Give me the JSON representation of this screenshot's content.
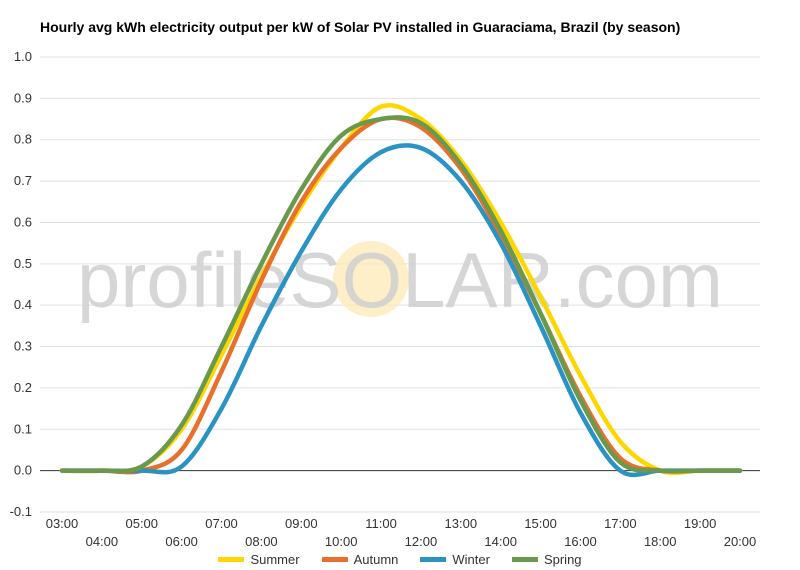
{
  "chart_data": {
    "type": "line",
    "title": "Hourly avg kWh electricity output per kW of Solar PV installed in Guaraciama, Brazil (by season)",
    "xlabel": "",
    "ylabel": "",
    "ylim": [
      -0.1,
      1.0
    ],
    "yticks": [
      "-0.1",
      "0.0",
      "0.1",
      "0.2",
      "0.3",
      "0.4",
      "0.5",
      "0.6",
      "0.7",
      "0.8",
      "0.9",
      "1.0"
    ],
    "grid": true,
    "legend_position": "bottom",
    "categories": [
      "03:00",
      "04:00",
      "05:00",
      "06:00",
      "07:00",
      "08:00",
      "09:00",
      "10:00",
      "11:00",
      "12:00",
      "13:00",
      "14:00",
      "15:00",
      "16:00",
      "17:00",
      "18:00",
      "19:00",
      "20:00"
    ],
    "series": [
      {
        "name": "Summer",
        "color": "#FFD700",
        "values": [
          0,
          0,
          0.01,
          0.1,
          0.28,
          0.47,
          0.64,
          0.78,
          0.88,
          0.85,
          0.75,
          0.6,
          0.42,
          0.23,
          0.07,
          0.0,
          0.0,
          0.0
        ]
      },
      {
        "name": "Autumn",
        "color": "#E8702A",
        "values": [
          0,
          0,
          0.0,
          0.05,
          0.24,
          0.46,
          0.65,
          0.78,
          0.85,
          0.83,
          0.73,
          0.57,
          0.38,
          0.18,
          0.03,
          0.0,
          0.0,
          0.0
        ]
      },
      {
        "name": "Winter",
        "color": "#2A93C4",
        "values": [
          0,
          0,
          0.0,
          0.01,
          0.15,
          0.35,
          0.53,
          0.68,
          0.77,
          0.78,
          0.7,
          0.55,
          0.35,
          0.14,
          0.0,
          0.0,
          0.0,
          0.0
        ]
      },
      {
        "name": "Spring",
        "color": "#6A994E",
        "values": [
          0,
          0,
          0.01,
          0.11,
          0.3,
          0.5,
          0.68,
          0.81,
          0.85,
          0.84,
          0.74,
          0.58,
          0.38,
          0.17,
          0.02,
          0.0,
          0.0,
          0.0
        ]
      }
    ]
  },
  "watermark": {
    "prefix": "profile",
    "middle": "SOLAR",
    "suffix": ".com",
    "sun_color": "#FDE8B0"
  }
}
